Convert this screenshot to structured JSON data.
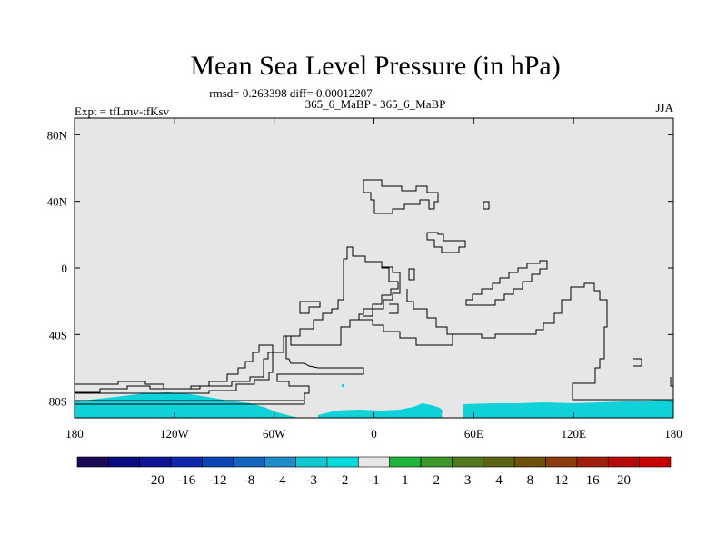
{
  "chart_data": {
    "type": "heatmap",
    "title": "Mean Sea Level Pressure (in hPa)",
    "stats_label": "rmsd= 0.263398 diff= 0.00012207",
    "comparison_label": "365_6_MaBP - 365_6_MaBP",
    "experiment_label": "Expt = tfLmv-tfKsv",
    "season_label": "JJA",
    "x_axis": {
      "range": [
        -180,
        180
      ],
      "ticks": [
        {
          "value": -180,
          "label": "180"
        },
        {
          "value": -120,
          "label": "120W"
        },
        {
          "value": -60,
          "label": "60W"
        },
        {
          "value": 0,
          "label": "0"
        },
        {
          "value": 60,
          "label": "60E"
        },
        {
          "value": 120,
          "label": "120E"
        },
        {
          "value": 180,
          "label": "180"
        }
      ]
    },
    "y_axis": {
      "range": [
        -90,
        90
      ],
      "ticks": [
        {
          "value": 80,
          "label": "80N"
        },
        {
          "value": 40,
          "label": "40N"
        },
        {
          "value": 0,
          "label": "0"
        },
        {
          "value": -40,
          "label": "40S"
        },
        {
          "value": -80,
          "label": "80S"
        }
      ]
    },
    "background_level": "-1 to 1",
    "anomaly_regions": [
      {
        "name": "west-antarctic-negative",
        "level": "-2 to -1",
        "lon": [
          -180,
          -60
        ],
        "lat": [
          -90,
          -82
        ]
      },
      {
        "name": "antarctic-coast-negative",
        "level": "-2 to -1",
        "lon": [
          -30,
          40
        ],
        "lat": [
          -90,
          -87
        ]
      },
      {
        "name": "east-antarctic-negative",
        "level": "-2 to -1",
        "lon": [
          60,
          180
        ],
        "lat": [
          -90,
          -82
        ]
      }
    ],
    "colorbar": {
      "labels": [
        "-20",
        "-16",
        "-12",
        "-8",
        "-4",
        "-3",
        "-2",
        "-1",
        "1",
        "2",
        "3",
        "4",
        "8",
        "12",
        "16",
        "20"
      ],
      "colors": [
        "#1a0a55",
        "#0c0c82",
        "#0f1596",
        "#0d28aa",
        "#0a46b4",
        "#1464be",
        "#1e8cc8",
        "#0fc8d2",
        "#00dcdc",
        "#e6e6e6",
        "#1eb43c",
        "#3c9628",
        "#50781e",
        "#5a6414",
        "#6e500a",
        "#8c3c0a",
        "#a01e0a",
        "#b40a0a",
        "#c80000"
      ]
    }
  }
}
